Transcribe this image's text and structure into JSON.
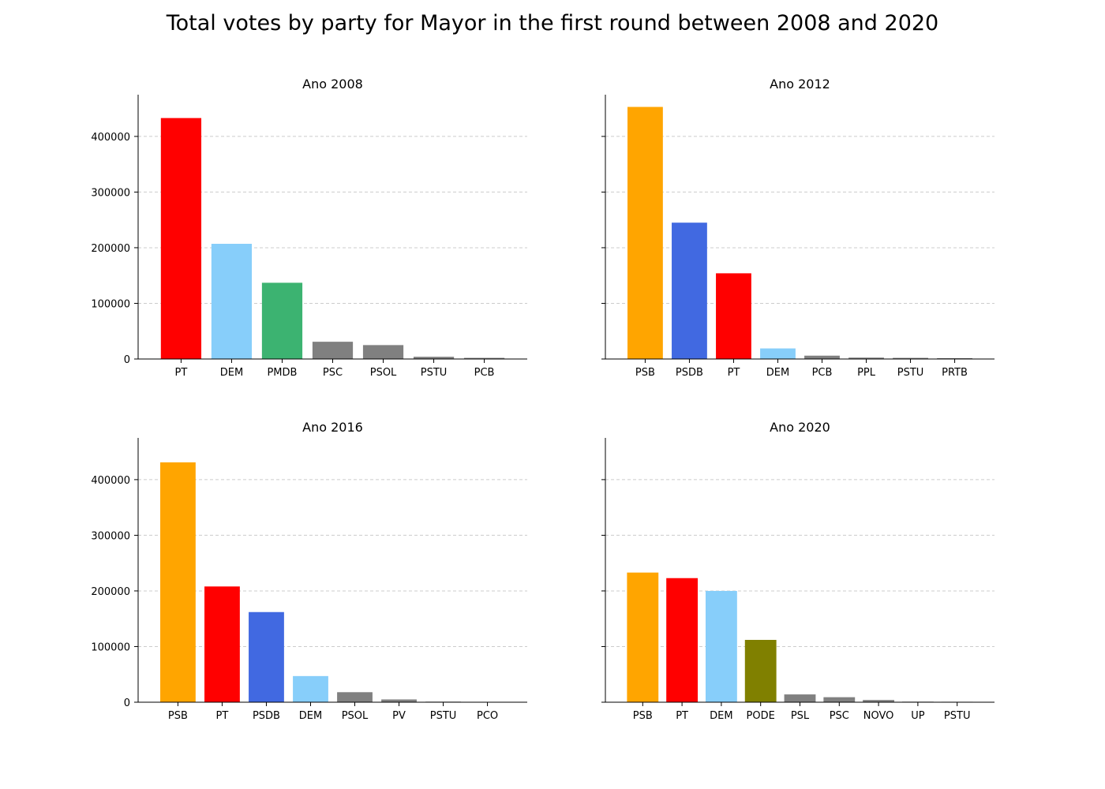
{
  "title": "Total votes by party for Mayor in the first round between 2008 and 2020",
  "chart_data": [
    {
      "type": "bar",
      "title": "Ano 2008",
      "categories": [
        "PT",
        "DEM",
        "PMDB",
        "PSC",
        "PSOL",
        "PSTU",
        "PCB"
      ],
      "values": [
        433000,
        207000,
        137000,
        31000,
        25000,
        4000,
        2000
      ],
      "colors": [
        "#ff0000",
        "#87cefa",
        "#3cb371",
        "#808080",
        "#808080",
        "#808080",
        "#808080"
      ],
      "yticks": [
        0,
        100000,
        200000,
        300000,
        400000
      ],
      "ylim": [
        0,
        475000
      ],
      "grid": "y"
    },
    {
      "type": "bar",
      "title": "Ano 2012",
      "categories": [
        "PSB",
        "PSDB",
        "PT",
        "DEM",
        "PCB",
        "PPL",
        "PSTU",
        "PRTB"
      ],
      "values": [
        453000,
        245000,
        154000,
        19000,
        6000,
        2500,
        2000,
        1500
      ],
      "colors": [
        "#ffa500",
        "#4169e1",
        "#ff0000",
        "#87cefa",
        "#808080",
        "#808080",
        "#808080",
        "#808080"
      ],
      "yticks": [
        0,
        100000,
        200000,
        300000,
        400000
      ],
      "ylim": [
        0,
        475000
      ],
      "grid": "y"
    },
    {
      "type": "bar",
      "title": "Ano 2016",
      "categories": [
        "PSB",
        "PT",
        "PSDB",
        "DEM",
        "PSOL",
        "PV",
        "PSTU",
        "PCO"
      ],
      "values": [
        431000,
        208000,
        162000,
        47000,
        18000,
        5000,
        1000,
        400
      ],
      "colors": [
        "#ffa500",
        "#ff0000",
        "#4169e1",
        "#87cefa",
        "#808080",
        "#808080",
        "#808080",
        "#808080"
      ],
      "yticks": [
        0,
        100000,
        200000,
        300000,
        400000
      ],
      "ylim": [
        0,
        475000
      ],
      "grid": "y"
    },
    {
      "type": "bar",
      "title": "Ano 2020",
      "categories": [
        "PSB",
        "PT",
        "DEM",
        "PODE",
        "PSL",
        "PSC",
        "NOVO",
        "UP",
        "PSTU"
      ],
      "values": [
        233000,
        223000,
        200000,
        112000,
        14000,
        9000,
        4000,
        1000,
        800
      ],
      "colors": [
        "#ffa500",
        "#ff0000",
        "#87cefa",
        "#808000",
        "#808080",
        "#808080",
        "#808080",
        "#808080",
        "#808080"
      ],
      "yticks": [
        0,
        100000,
        200000,
        300000,
        400000
      ],
      "ylim": [
        0,
        475000
      ],
      "grid": "y"
    }
  ]
}
